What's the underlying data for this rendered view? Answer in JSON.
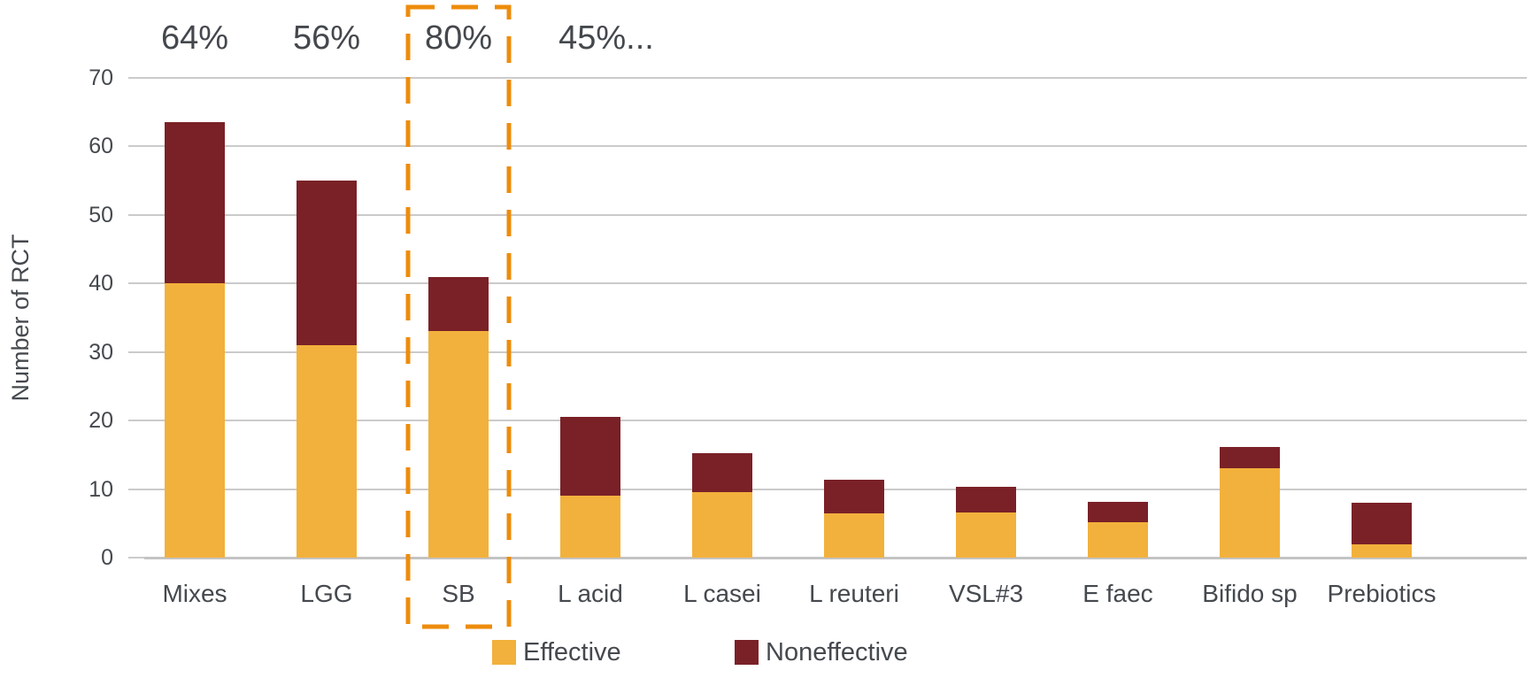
{
  "colors": {
    "effective": "#F2B13C",
    "noneffective": "#7A2127",
    "highlight_box": "#ED8C0C",
    "gridline": "#CBCBCB",
    "axis_line": "#C4C4C4",
    "text": "#45494E"
  },
  "chart_data": {
    "type": "bar",
    "stacked": true,
    "title": "",
    "xlabel": "",
    "ylabel": "Number of RCT",
    "ylim": [
      0,
      70
    ],
    "yticks": [
      0,
      10,
      20,
      30,
      40,
      50,
      60,
      70
    ],
    "grid": true,
    "legend_position": "bottom",
    "categories": [
      "Mixes",
      "LGG",
      "SB",
      "L acid",
      "L casei",
      "L reuteri",
      "VSL#3",
      "E faec",
      "Bifido sp",
      "Prebiotics"
    ],
    "series": [
      {
        "name": "Effective",
        "color": "#F2B13C",
        "values": [
          40,
          31,
          33,
          9,
          9.5,
          6.4,
          6.6,
          5.2,
          13,
          2
        ]
      },
      {
        "name": "Noneffective",
        "color": "#7A2127",
        "values": [
          23.5,
          24,
          8,
          11.5,
          5.8,
          5,
          3.7,
          3,
          3.2,
          6
        ]
      }
    ],
    "annotations": [
      {
        "text": "64%",
        "category_index": 0
      },
      {
        "text": "56%",
        "category_index": 1
      },
      {
        "text": "80%",
        "category_index": 2
      },
      {
        "text": "45%...",
        "category_index": 3
      }
    ],
    "highlight": {
      "category": "SB",
      "category_index": 2,
      "style": "dashed-box"
    }
  }
}
